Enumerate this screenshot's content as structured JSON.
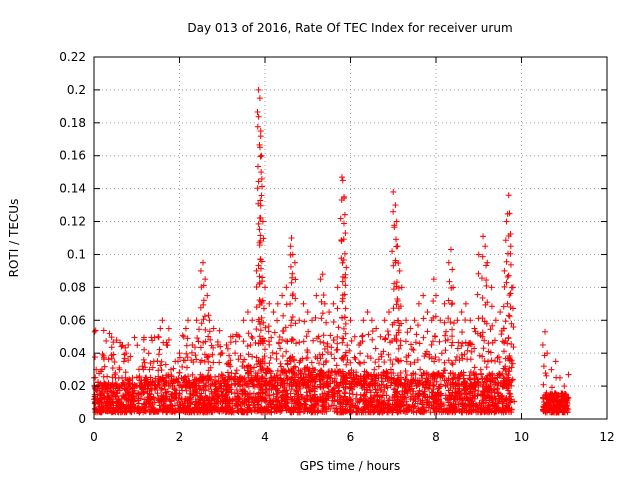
{
  "chart_data": {
    "type": "scatter",
    "title": "Day 013 of 2016, Rate Of TEC Index for receiver urum",
    "xlabel": "GPS time / hours",
    "ylabel": "ROTI / TECUs",
    "xlim": [
      0,
      12
    ],
    "ylim": [
      0,
      0.22
    ],
    "xticks": [
      "0",
      "2",
      "4",
      "6",
      "8",
      "10",
      "12"
    ],
    "yticks": [
      "0",
      "0.02",
      "0.04",
      "0.06",
      "0.08",
      "0.1",
      "0.12",
      "0.14",
      "0.16",
      "0.18",
      "0.2",
      "0.22"
    ],
    "grid": true,
    "marker": "+",
    "color": "#ff0000",
    "series": [
      {
        "name": "ROTI",
        "note": "Dense background points 0–0.03 TECU from 0 to 9.8 h and 10.5 to 11.1 h; gap between 9.8 and 10.5 h",
        "x": [
          0.0,
          0.05,
          0.1,
          0.15,
          0.2,
          0.3,
          0.4,
          0.5,
          0.6,
          0.7,
          0.75,
          0.8,
          0.85,
          0.9,
          1.0,
          1.1,
          1.2,
          1.3,
          1.4,
          1.5,
          1.55,
          1.6,
          1.7,
          1.8,
          1.9,
          2.0,
          2.1,
          2.15,
          2.2,
          2.3,
          2.4,
          2.5,
          2.55,
          2.6,
          2.65,
          2.7,
          2.8,
          2.9,
          3.0,
          3.1,
          3.2,
          3.3,
          3.4,
          3.5,
          3.6,
          3.7,
          3.8,
          3.85,
          3.88,
          3.9,
          3.92,
          3.95,
          4.0,
          4.1,
          4.2,
          4.3,
          4.4,
          4.5,
          4.6,
          4.62,
          4.65,
          4.7,
          4.8,
          4.9,
          5.0,
          5.1,
          5.2,
          5.3,
          5.35,
          5.4,
          5.5,
          5.6,
          5.7,
          5.8,
          5.82,
          5.85,
          5.88,
          5.9,
          6.0,
          6.1,
          6.2,
          6.3,
          6.4,
          6.5,
          6.6,
          6.7,
          6.8,
          6.9,
          7.0,
          7.05,
          7.08,
          7.1,
          7.15,
          7.2,
          7.3,
          7.4,
          7.5,
          7.6,
          7.7,
          7.8,
          7.9,
          7.95,
          8.0,
          8.1,
          8.2,
          8.3,
          8.35,
          8.4,
          8.5,
          8.6,
          8.7,
          8.8,
          8.9,
          9.0,
          9.1,
          9.15,
          9.2,
          9.3,
          9.4,
          9.5,
          9.6,
          9.65,
          9.7,
          9.72,
          9.75,
          9.8,
          10.5,
          10.55,
          10.6,
          10.7,
          10.8,
          10.9,
          11.0,
          11.1
        ],
        "y": [
          0.025,
          0.03,
          0.02,
          0.015,
          0.02,
          0.012,
          0.02,
          0.028,
          0.03,
          0.035,
          0.04,
          0.045,
          0.038,
          0.025,
          0.02,
          0.022,
          0.025,
          0.03,
          0.035,
          0.05,
          0.055,
          0.06,
          0.045,
          0.03,
          0.035,
          0.04,
          0.05,
          0.055,
          0.06,
          0.045,
          0.06,
          0.09,
          0.095,
          0.085,
          0.075,
          0.06,
          0.055,
          0.045,
          0.04,
          0.045,
          0.05,
          0.04,
          0.05,
          0.06,
          0.065,
          0.06,
          0.09,
          0.2,
          0.195,
          0.175,
          0.16,
          0.12,
          0.08,
          0.07,
          0.065,
          0.07,
          0.075,
          0.08,
          0.105,
          0.11,
          0.1,
          0.095,
          0.06,
          0.07,
          0.065,
          0.06,
          0.075,
          0.085,
          0.088,
          0.07,
          0.065,
          0.07,
          0.08,
          0.147,
          0.145,
          0.135,
          0.113,
          0.092,
          0.06,
          0.05,
          0.045,
          0.06,
          0.065,
          0.06,
          0.055,
          0.05,
          0.06,
          0.065,
          0.138,
          0.13,
          0.12,
          0.105,
          0.09,
          0.08,
          0.06,
          0.055,
          0.06,
          0.07,
          0.075,
          0.065,
          0.06,
          0.085,
          0.075,
          0.06,
          0.07,
          0.095,
          0.103,
          0.08,
          0.06,
          0.065,
          0.07,
          0.06,
          0.055,
          0.1,
          0.111,
          0.105,
          0.095,
          0.08,
          0.06,
          0.065,
          0.09,
          0.12,
          0.136,
          0.125,
          0.105,
          0.08,
          0.045,
          0.053,
          0.04,
          0.03,
          0.035,
          0.025,
          0.02,
          0.027
        ]
      }
    ]
  }
}
